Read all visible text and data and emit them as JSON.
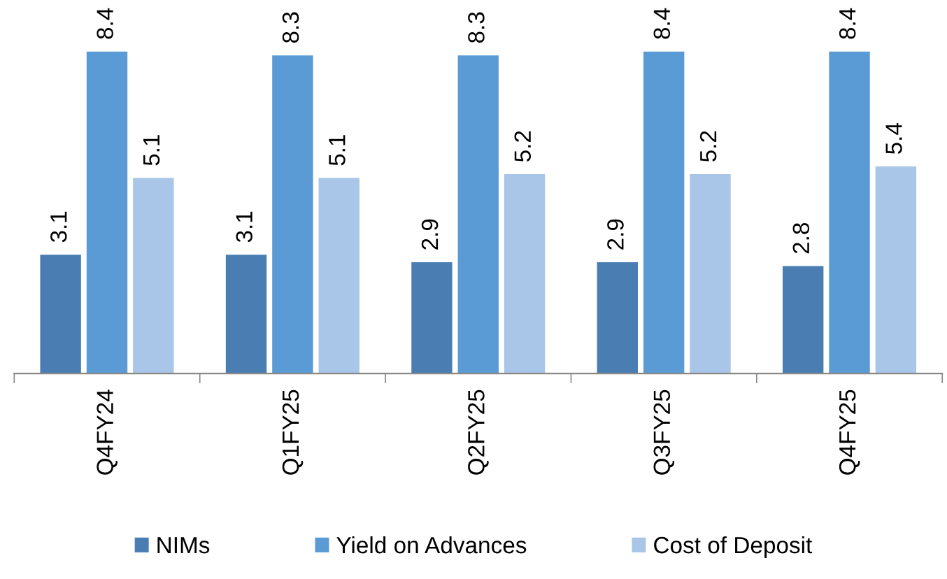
{
  "chart_data": {
    "type": "bar",
    "categories": [
      "Q4FY24",
      "Q1FY25",
      "Q2FY25",
      "Q3FY25",
      "Q4FY25"
    ],
    "series": [
      {
        "name": "NIMs",
        "color": "#4a7eb3",
        "values": [
          3.1,
          3.1,
          2.9,
          2.9,
          2.8
        ]
      },
      {
        "name": "Yield on Advances",
        "color": "#5b9bd5",
        "values": [
          8.4,
          8.3,
          8.3,
          8.4,
          8.4
        ]
      },
      {
        "name": "Cost of Deposit",
        "color": "#a9c5e8",
        "values": [
          5.1,
          5.1,
          5.2,
          5.2,
          5.4
        ]
      }
    ],
    "data_labels": true,
    "grid": false,
    "legend": "bottom"
  }
}
